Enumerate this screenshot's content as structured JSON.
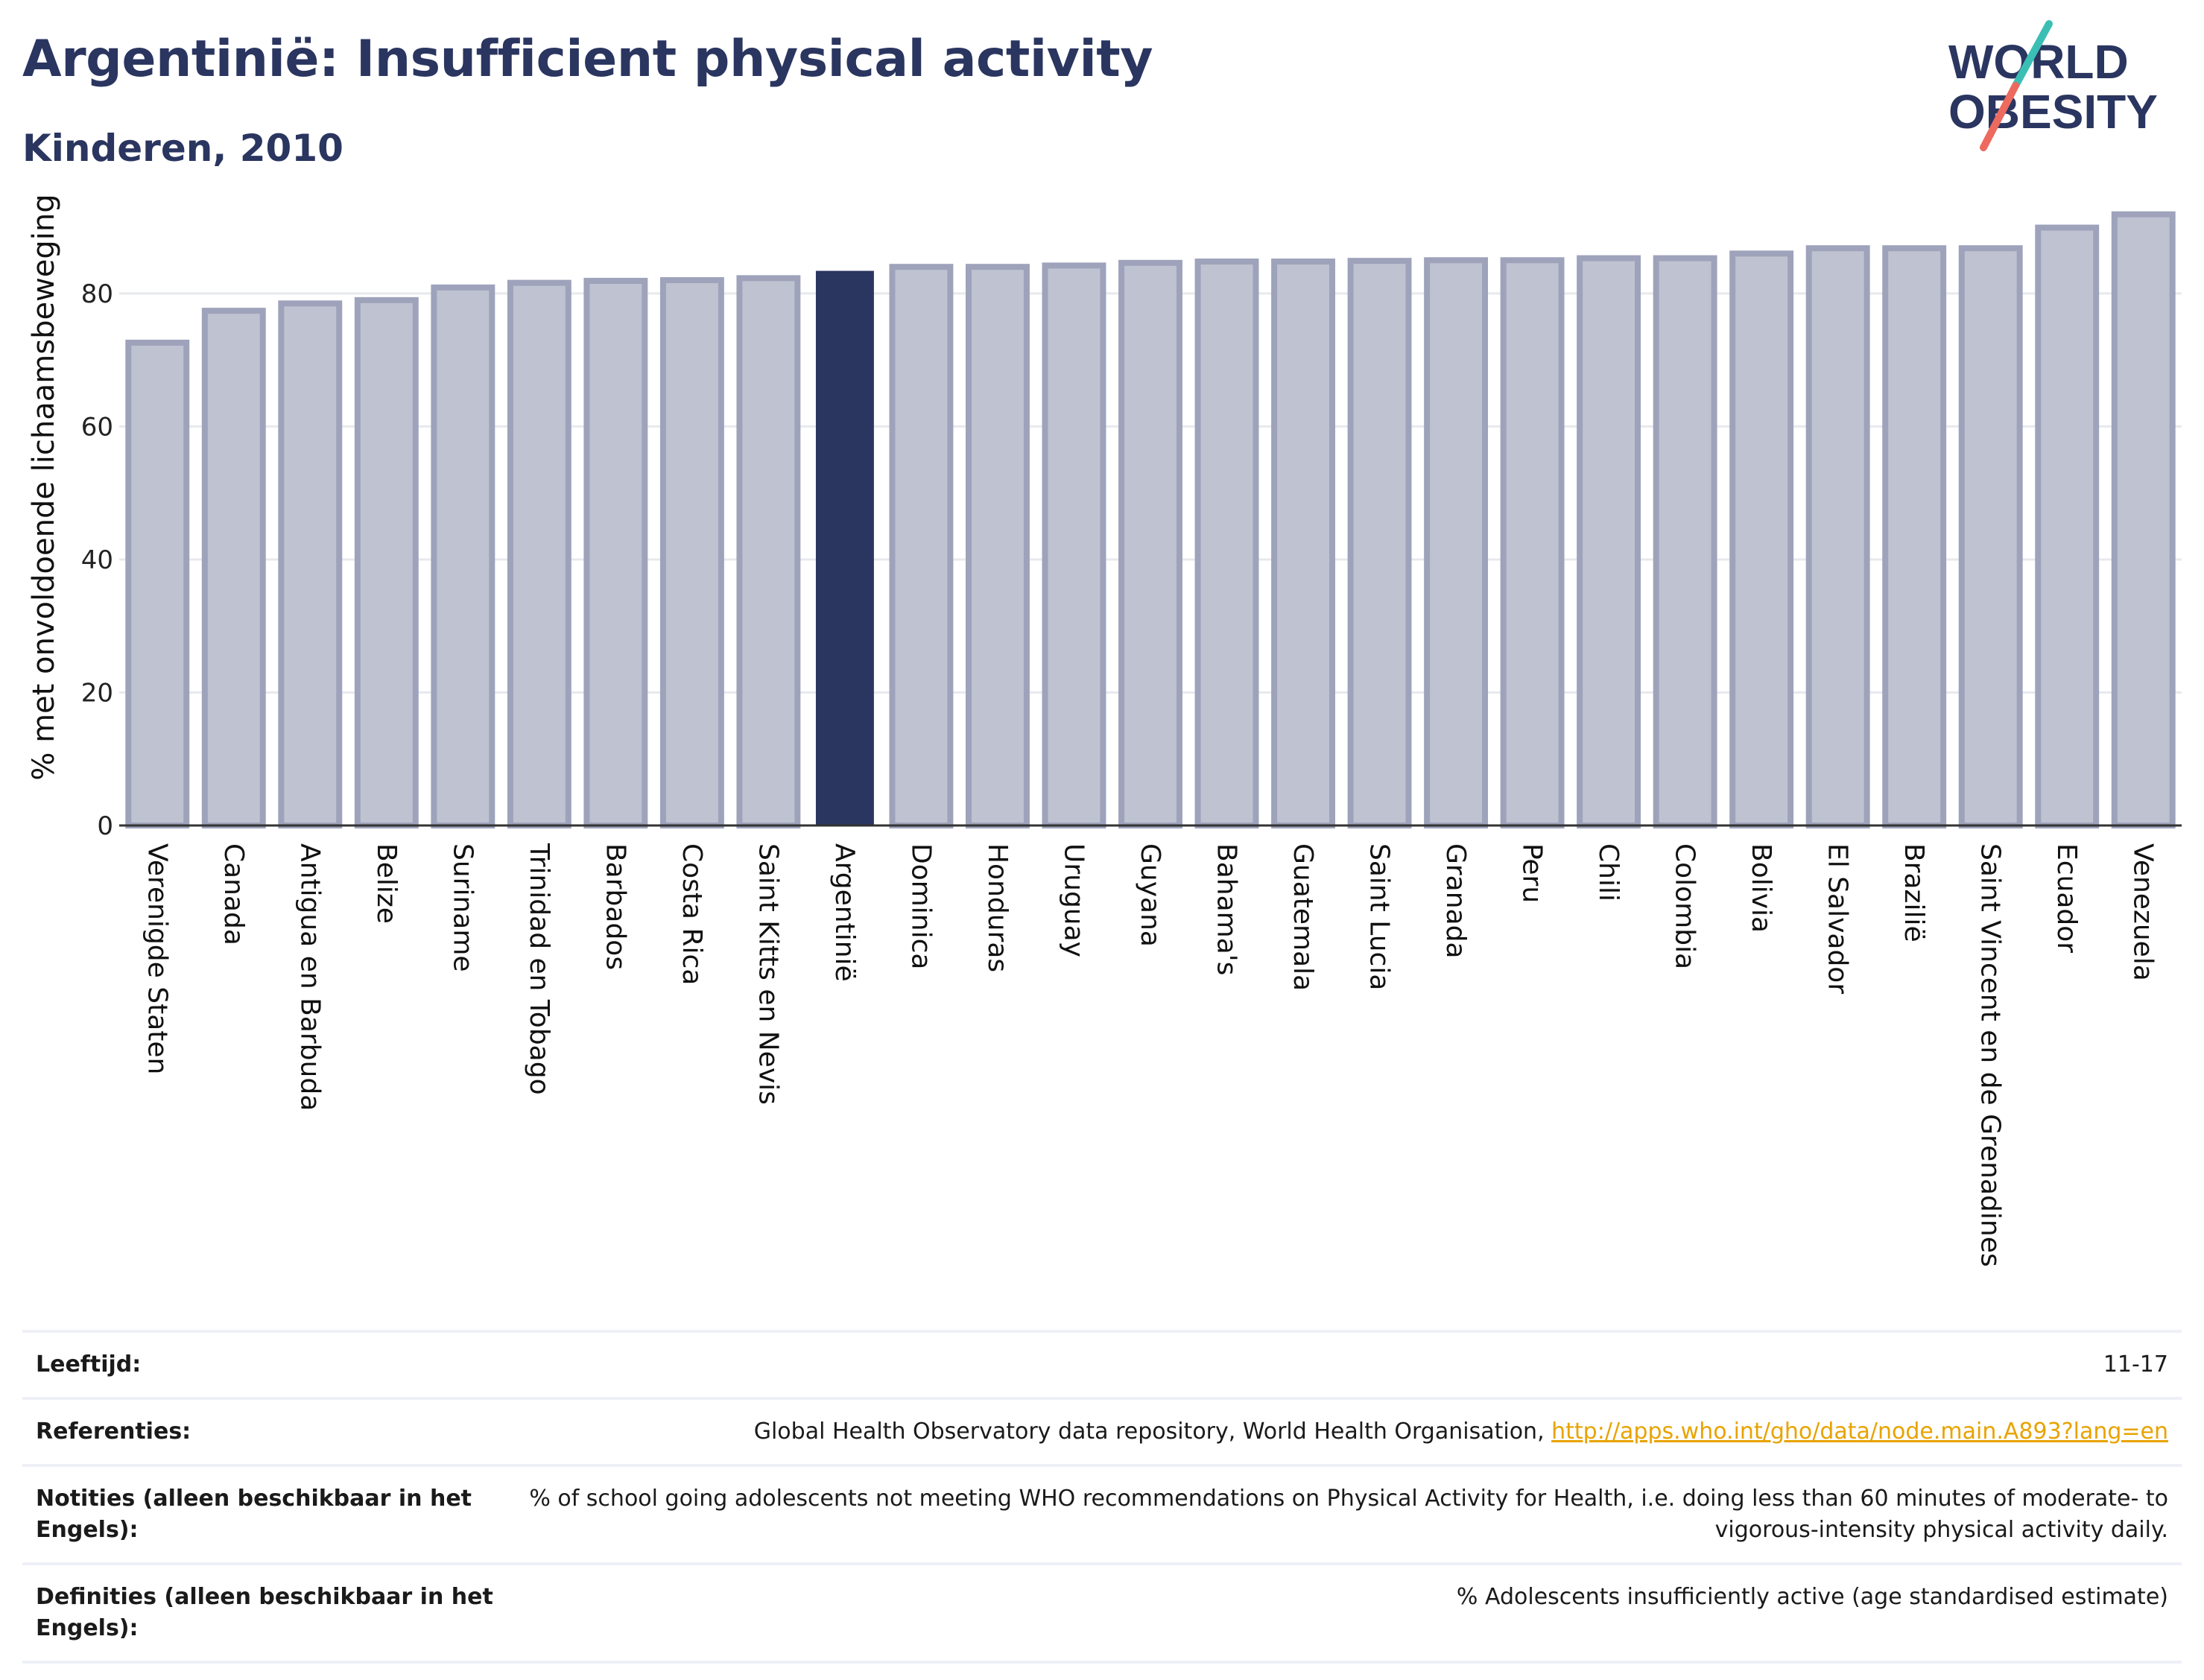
{
  "header": {
    "title": "Argentinië: Insufficient physical activity",
    "subtitle": "Kinderen, 2010"
  },
  "logo": {
    "line1": "WORLD",
    "line2": "OBESITY",
    "colors": {
      "text": "#2a3560",
      "slash_teal": "#3bbfb5",
      "slash_coral": "#ec6a5e"
    }
  },
  "colors": {
    "highlight": "#2a3560",
    "bar_fill": "#bfc2d0",
    "bar_stroke": "#9ea3bb",
    "gridline": "#e8e9ee",
    "axis": "#333333"
  },
  "chart_data": {
    "type": "bar",
    "title": "",
    "xlabel": "",
    "ylabel": "% met onvoldoende lichaamsbeweging",
    "ylim": [
      0,
      95
    ],
    "yticks": [
      0,
      20,
      40,
      60,
      80
    ],
    "grid": true,
    "highlight": "Argentinië",
    "categories": [
      "Verenigde Staten",
      "Canada",
      "Antigua en Barbuda",
      "Belize",
      "Suriname",
      "Trinidad en Tobago",
      "Barbados",
      "Costa Rica",
      "Saint Kitts en Nevis",
      "Argentinië",
      "Dominica",
      "Honduras",
      "Uruguay",
      "Guyana",
      "Bahama's",
      "Guatemala",
      "Saint Lucia",
      "Granada",
      "Peru",
      "Chili",
      "Colombia",
      "Bolivia",
      "El Salvador",
      "Brazilië",
      "Saint Vincent en de Grenadines",
      "Ecuador",
      "Venezuela"
    ],
    "values": [
      72.6,
      77.4,
      78.5,
      79.0,
      80.9,
      81.6,
      81.9,
      82.0,
      82.3,
      83.4,
      84.0,
      84.0,
      84.2,
      84.6,
      84.8,
      84.8,
      84.9,
      85.0,
      85.0,
      85.3,
      85.3,
      86.0,
      86.8,
      86.8,
      86.8,
      89.9,
      91.9
    ]
  },
  "notes": [
    {
      "label": "Leeftijd:",
      "value": "11-17"
    },
    {
      "label": "Referenties:",
      "value": "Global Health Observatory data repository, World Health Organisation, ",
      "link": "http://apps.who.int/gho/data/node.main.A893?lang=en"
    },
    {
      "label": "Notities (alleen beschikbaar in het Engels):",
      "value": "% of school going adolescents not meeting WHO recommendations on Physical Activity for Health, i.e. doing less than 60 minutes of moderate- to vigorous-intensity physical activity daily."
    },
    {
      "label": "Definities (alleen beschikbaar in het Engels):",
      "value": "% Adolescents insufficiently active (age standardised estimate)"
    }
  ]
}
